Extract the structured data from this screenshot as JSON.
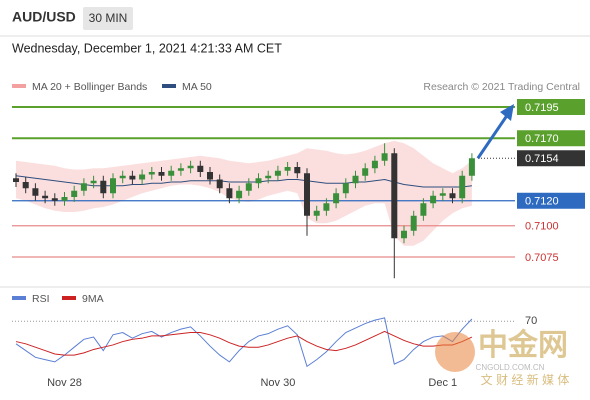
{
  "header": {
    "symbol": "AUD/USD",
    "timeframe": "30 MIN",
    "date": "Wednesday, December 1, 2021 4:21:33 AM CET"
  },
  "watermark": {
    "name": "中金网",
    "site": "CNGOLD.COM.CN",
    "tagline": "文 财 经 新 媒 体"
  },
  "chart_data": [
    {
      "type": "candlestick",
      "legend": [
        "MA 20 + Bollinger Bands",
        "MA 50"
      ],
      "legend_colors": [
        "#f2a0a0",
        "#2d4e7e"
      ],
      "credit": "Research © 2021 Trading Central",
      "ylim": [
        0.70526,
        0.7207
      ],
      "xticks": [
        {
          "value": 5,
          "label": "Nov 28"
        },
        {
          "value": 27,
          "label": "Nov 30"
        },
        {
          "value": 44,
          "label": "Dec 1"
        }
      ],
      "up_color": "#3a8f3a",
      "down_color": "#333333",
      "open": [
        0.7138,
        0.7135,
        0.713,
        0.7124,
        0.7122,
        0.712,
        0.7123,
        0.7128,
        0.7134,
        0.7136,
        0.7126,
        0.7138,
        0.714,
        0.7137,
        0.7141,
        0.7143,
        0.714,
        0.7144,
        0.7146,
        0.7148,
        0.7143,
        0.7137,
        0.713,
        0.7122,
        0.7128,
        0.7134,
        0.7138,
        0.714,
        0.7144,
        0.7147,
        0.7142,
        0.7108,
        0.7112,
        0.7118,
        0.7126,
        0.7134,
        0.714,
        0.7146,
        0.7152,
        0.7158,
        0.709,
        0.7096,
        0.7108,
        0.7118,
        0.7124,
        0.7126,
        0.7122,
        0.714
      ],
      "high": [
        0.7142,
        0.7139,
        0.7134,
        0.7128,
        0.7126,
        0.7127,
        0.7132,
        0.7138,
        0.714,
        0.714,
        0.7142,
        0.7144,
        0.7144,
        0.7145,
        0.7147,
        0.7147,
        0.7148,
        0.715,
        0.7152,
        0.7152,
        0.7147,
        0.7141,
        0.7134,
        0.7132,
        0.7138,
        0.7142,
        0.7144,
        0.7148,
        0.7151,
        0.7151,
        0.7146,
        0.7116,
        0.7122,
        0.713,
        0.7138,
        0.7144,
        0.715,
        0.7156,
        0.7166,
        0.7162,
        0.71,
        0.7112,
        0.7122,
        0.7128,
        0.713,
        0.713,
        0.7144,
        0.7158
      ],
      "low": [
        0.7131,
        0.7126,
        0.712,
        0.7118,
        0.7116,
        0.7116,
        0.7119,
        0.7124,
        0.713,
        0.7122,
        0.7122,
        0.7134,
        0.7133,
        0.7133,
        0.7137,
        0.7136,
        0.7136,
        0.714,
        0.7142,
        0.7139,
        0.7133,
        0.7126,
        0.7118,
        0.7118,
        0.7124,
        0.713,
        0.7134,
        0.7136,
        0.714,
        0.7138,
        0.7092,
        0.7104,
        0.7108,
        0.7114,
        0.7122,
        0.713,
        0.7136,
        0.7142,
        0.7148,
        0.7058,
        0.7086,
        0.7092,
        0.7104,
        0.7114,
        0.712,
        0.7118,
        0.7118,
        0.7136
      ],
      "close": [
        0.7135,
        0.713,
        0.7124,
        0.7122,
        0.712,
        0.7123,
        0.7128,
        0.7134,
        0.7136,
        0.7126,
        0.7138,
        0.714,
        0.7137,
        0.7141,
        0.7143,
        0.714,
        0.7144,
        0.7146,
        0.7148,
        0.7143,
        0.7137,
        0.713,
        0.7122,
        0.7128,
        0.7134,
        0.7138,
        0.714,
        0.7144,
        0.7147,
        0.7142,
        0.7108,
        0.7112,
        0.7118,
        0.7126,
        0.7134,
        0.714,
        0.7146,
        0.7152,
        0.7158,
        0.709,
        0.7096,
        0.7108,
        0.7118,
        0.7124,
        0.7126,
        0.7122,
        0.714,
        0.7154
      ],
      "ma50": [
        0.714,
        0.7139,
        0.7138,
        0.7137,
        0.7136,
        0.7135,
        0.7134,
        0.7133,
        0.7132,
        0.7132,
        0.7132,
        0.7132,
        0.7133,
        0.7133,
        0.7134,
        0.7134,
        0.7135,
        0.7135,
        0.7136,
        0.7136,
        0.7136,
        0.7136,
        0.7135,
        0.7135,
        0.7135,
        0.7135,
        0.7136,
        0.7136,
        0.7137,
        0.7137,
        0.7136,
        0.7135,
        0.7134,
        0.7134,
        0.7134,
        0.7135,
        0.7135,
        0.7136,
        0.7137,
        0.7135,
        0.7133,
        0.7132,
        0.7131,
        0.7131,
        0.7131,
        0.7131,
        0.7131,
        0.7132
      ],
      "band_upper": [
        0.7152,
        0.7151,
        0.715,
        0.7149,
        0.7148,
        0.7146,
        0.7145,
        0.7145,
        0.7146,
        0.7146,
        0.7147,
        0.7148,
        0.7149,
        0.715,
        0.7151,
        0.7152,
        0.7153,
        0.7154,
        0.7155,
        0.7156,
        0.7155,
        0.7154,
        0.7152,
        0.7151,
        0.715,
        0.7151,
        0.7152,
        0.7154,
        0.7156,
        0.7158,
        0.7162,
        0.7161,
        0.716,
        0.7158,
        0.7157,
        0.7158,
        0.716,
        0.7163,
        0.7166,
        0.7168,
        0.7166,
        0.7162,
        0.7156,
        0.715,
        0.7146,
        0.7142,
        0.7146,
        0.7152
      ],
      "band_lower": [
        0.7122,
        0.712,
        0.7117,
        0.7114,
        0.7112,
        0.7111,
        0.7111,
        0.7112,
        0.7114,
        0.7115,
        0.7117,
        0.712,
        0.7123,
        0.7126,
        0.7128,
        0.713,
        0.7132,
        0.7133,
        0.7133,
        0.7132,
        0.713,
        0.7127,
        0.7122,
        0.712,
        0.7119,
        0.7121,
        0.7124,
        0.7126,
        0.7128,
        0.7126,
        0.7106,
        0.7102,
        0.7102,
        0.7104,
        0.7108,
        0.7112,
        0.7116,
        0.7118,
        0.7118,
        0.7092,
        0.7084,
        0.7084,
        0.7088,
        0.7096,
        0.7104,
        0.711,
        0.7114,
        0.7116
      ],
      "band_color": "#f9d4d4",
      "ma50_color": "#2d4e7e",
      "levels": [
        {
          "value": 0.7195,
          "color": "#5aa02c"
        },
        {
          "value": {
            "value": 0.717,
            "label": "0.7170"
          },
          "color": "#5aa02c"
        },
        {
          "value": 0.7154,
          "color": "#333333"
        },
        {
          "value": {
            "value": 0.712,
            "label": "0.7120"
          },
          "color": "#2e6ac0"
        },
        {
          "value": {
            "value": 0.71,
            "label": "0.7100"
          },
          "color": "#e88a8a"
        },
        {
          "value": 0.7075,
          "color": "#e88a8a"
        }
      ]
    },
    {
      "type": "line",
      "ylim": [
        25,
        80
      ],
      "yticks": [
        70
      ],
      "series": [
        {
          "name": "RSI",
          "color": "#5b7fd4",
          "values": [
            50,
            44,
            38,
            36,
            34,
            40,
            47,
            54,
            56,
            44,
            58,
            60,
            55,
            59,
            61,
            56,
            60,
            63,
            65,
            57,
            48,
            40,
            34,
            44,
            52,
            57,
            59,
            63,
            66,
            58,
            30,
            36,
            43,
            52,
            60,
            64,
            68,
            71,
            73,
            32,
            36,
            45,
            52,
            56,
            57,
            52,
            63,
            72
          ]
        },
        {
          "name": "9MA",
          "color": "#cc2222",
          "values": [
            52,
            50,
            47,
            44,
            41,
            40,
            40,
            42,
            45,
            47,
            49,
            52,
            54,
            55,
            57,
            57,
            58,
            59,
            60,
            60,
            58,
            55,
            51,
            48,
            47,
            47,
            49,
            52,
            55,
            57,
            52,
            48,
            45,
            44,
            46,
            49,
            53,
            57,
            61,
            57,
            53,
            50,
            48,
            48,
            49,
            49,
            52,
            56
          ]
        }
      ]
    }
  ]
}
